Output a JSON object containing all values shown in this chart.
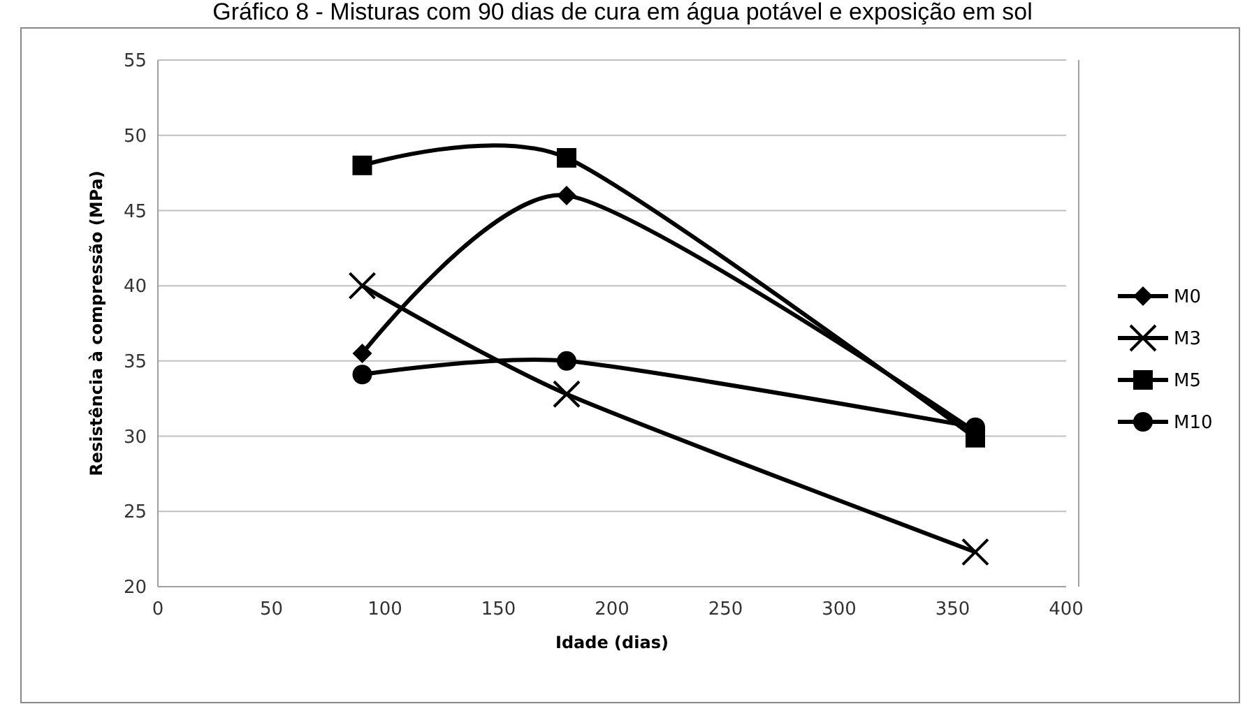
{
  "chart_data": {
    "type": "line",
    "title": "Gráfico 8 - Misturas com 90 dias de cura em água potável e exposição em sol",
    "xlabel": "Idade (dias)",
    "ylabel": "Resistência à compressão (MPa)",
    "x": [
      90,
      180,
      360
    ],
    "xlim": [
      0,
      400
    ],
    "xticks": [
      0,
      50,
      100,
      150,
      200,
      250,
      300,
      350,
      400
    ],
    "ylim": [
      20,
      55
    ],
    "yticks": [
      20,
      25,
      30,
      35,
      40,
      45,
      50,
      55
    ],
    "grid": "y",
    "legend": "right",
    "line_style": "solid",
    "series": [
      {
        "name": "M0",
        "color": "#000000",
        "marker": "diamond",
        "values": [
          35.5,
          46,
          30.3
        ]
      },
      {
        "name": "M3",
        "color": "#000000",
        "marker": "cross",
        "values": [
          40,
          32.8,
          22.3
        ]
      },
      {
        "name": "M5",
        "color": "#000000",
        "marker": "square",
        "values": [
          48,
          48.5,
          29.9
        ]
      },
      {
        "name": "M10",
        "color": "#000000",
        "marker": "circle",
        "values": [
          34.1,
          35,
          30.6
        ]
      }
    ]
  }
}
